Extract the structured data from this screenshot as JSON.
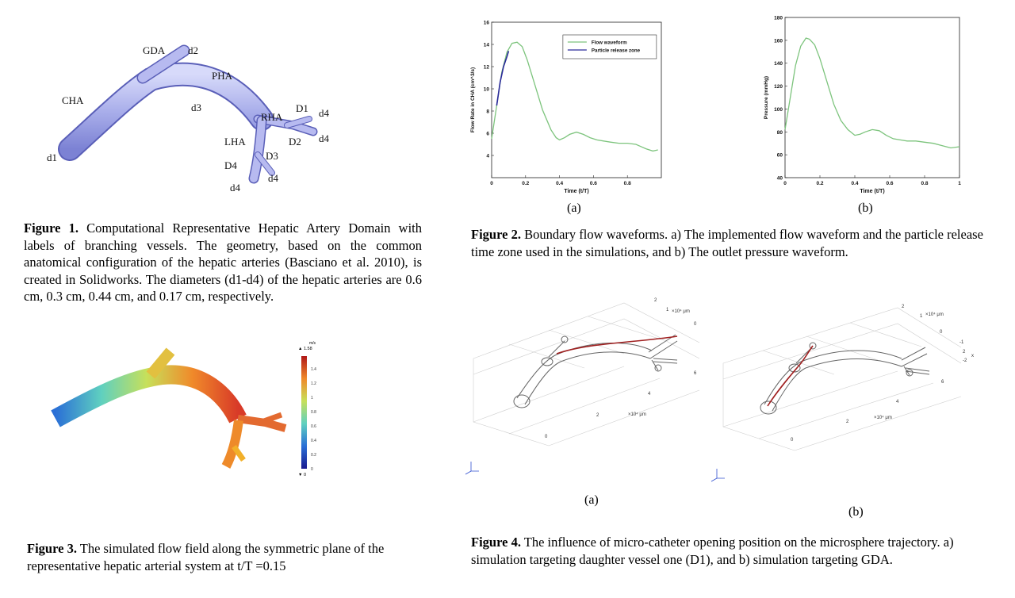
{
  "fig1": {
    "labels": {
      "gda": "GDA",
      "d2": "d2",
      "pha": "PHA",
      "cha": "CHA",
      "d3": "d3",
      "rha": "RHA",
      "D1": "D1",
      "d4a": "d4",
      "D2": "D2",
      "d4b": "d4",
      "lha": "LHA",
      "D3": "D3",
      "D4": "D4",
      "d4c": "d4",
      "d4d": "d4",
      "d1": "d1"
    },
    "caption_label": "Figure 1.",
    "caption_text": " Computational Representative Hepatic Artery Domain with labels of branching vessels. The geometry, based on the common anatomical configuration of the hepatic arteries (Basciano et al. 2010), is created in Solidworks. The diameters (d1-d4) of the hepatic arteries are 0.6 cm, 0.3 cm, 0.44 cm, and 0.17 cm, respectively."
  },
  "fig2": {
    "sub_a": "(a)",
    "sub_b": "(b)",
    "caption_label": "Figure 2.",
    "caption_text": " Boundary flow waveforms. a) The implemented flow waveform and the particle release time zone used in the simulations, and b) The outlet pressure waveform."
  },
  "fig3": {
    "colorbar_unit": "m/s",
    "colorbar_max": "▲ 1.58",
    "colorbar_min": "▼ 0",
    "colorbar_ticks": [
      "1.4",
      "1.2",
      "1",
      "0.8",
      "0.6",
      "0.4",
      "0.2",
      "0"
    ],
    "caption_label": "Figure 3.",
    "caption_text": " The simulated flow field along the symmetric plane of the representative hepatic arterial system at t/T =0.15"
  },
  "fig4": {
    "sub_a": "(a)",
    "sub_b": "(b)",
    "axis_unit": "×10⁴ μm",
    "caption_label": "Figure 4.",
    "caption_text": " The influence of micro-catheter opening position on the microsphere trajectory. a) simulation targeting daughter vessel one (D1), and b) simulation targeting GDA."
  },
  "chart_data": [
    {
      "type": "line",
      "xlabel": "Time (t/T)",
      "ylabel": "Flow Rate in CHA (cm^3/s)",
      "xlim": [
        0,
        1
      ],
      "ylim": [
        2,
        16
      ],
      "xticks": [
        "0",
        "0.2",
        "0.4",
        "0.6",
        "0.8"
      ],
      "yticks": [
        "4",
        "6",
        "8",
        "10",
        "12",
        "14",
        "16"
      ],
      "legend_position": "top-right",
      "series": [
        {
          "name": "Flow waveform",
          "color": "#7dc47d",
          "x": [
            0,
            0.03,
            0.06,
            0.09,
            0.12,
            0.15,
            0.18,
            0.21,
            0.25,
            0.3,
            0.35,
            0.38,
            0.4,
            0.43,
            0.46,
            0.5,
            0.54,
            0.58,
            0.62,
            0.66,
            0.7,
            0.75,
            0.8,
            0.85,
            0.88,
            0.91,
            0.95,
            0.98
          ],
          "y": [
            5.5,
            8.5,
            11.5,
            13.3,
            14.1,
            14.2,
            13.8,
            12.6,
            10.6,
            8.1,
            6.3,
            5.6,
            5.4,
            5.6,
            5.9,
            6.1,
            5.9,
            5.6,
            5.4,
            5.3,
            5.2,
            5.1,
            5.1,
            5.0,
            4.8,
            4.6,
            4.4,
            4.5
          ]
        },
        {
          "name": "Particle release zone",
          "color": "#2a2a9a",
          "x": [
            0.03,
            0.05,
            0.07,
            0.09,
            0.1
          ],
          "y": [
            8.5,
            10.6,
            12.0,
            12.9,
            13.4
          ]
        }
      ]
    },
    {
      "type": "line",
      "xlabel": "Time (t/T)",
      "ylabel": "Pressure (mmHg)",
      "xlim": [
        0,
        1
      ],
      "ylim": [
        40,
        180
      ],
      "xticks": [
        "0",
        "0.2",
        "0.4",
        "0.6",
        "0.8",
        "1"
      ],
      "yticks": [
        "40",
        "60",
        "80",
        "100",
        "120",
        "140",
        "160",
        "180"
      ],
      "series": [
        {
          "name": "",
          "color": "#7dc47d",
          "x": [
            0,
            0.03,
            0.06,
            0.09,
            0.12,
            0.14,
            0.17,
            0.2,
            0.24,
            0.28,
            0.32,
            0.36,
            0.4,
            0.43,
            0.46,
            0.5,
            0.54,
            0.58,
            0.62,
            0.66,
            0.7,
            0.75,
            0.8,
            0.85,
            0.9,
            0.95,
            1.0
          ],
          "y": [
            82,
            110,
            138,
            155,
            162,
            161,
            156,
            144,
            124,
            104,
            90,
            82,
            77,
            78,
            80,
            82,
            81,
            77,
            74,
            73,
            72,
            72,
            71,
            70,
            68,
            66,
            67
          ]
        }
      ]
    }
  ]
}
